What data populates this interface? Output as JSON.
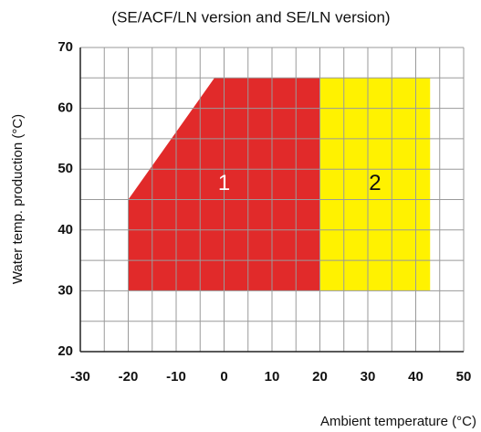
{
  "chart_data": {
    "type": "area",
    "title": "(SE/ACF/LN version and SE/LN version)",
    "x_label": "Ambient temperature (°C)",
    "y_label": "Water temp. production (°C)",
    "xlim": [
      -30,
      50
    ],
    "ylim": [
      20,
      70
    ],
    "xticks": [
      -30,
      -20,
      -10,
      0,
      10,
      20,
      30,
      40,
      50
    ],
    "yticks": [
      20,
      30,
      40,
      50,
      60,
      70
    ],
    "x_minor_ticks": [
      -25,
      -15,
      -5,
      5,
      15,
      25,
      35,
      45
    ],
    "y_minor_ticks": [
      25,
      35,
      45,
      55,
      65
    ],
    "grid": true,
    "series": [
      {
        "name": "1",
        "color": "#e12a2a",
        "x": [
          -20,
          -20,
          -2,
          20,
          20
        ],
        "values": [
          30,
          45,
          65,
          65,
          30
        ]
      },
      {
        "name": "2",
        "color": "#fff200",
        "x": [
          20,
          20,
          43,
          43
        ],
        "values": [
          30,
          65,
          65,
          30
        ]
      }
    ]
  }
}
